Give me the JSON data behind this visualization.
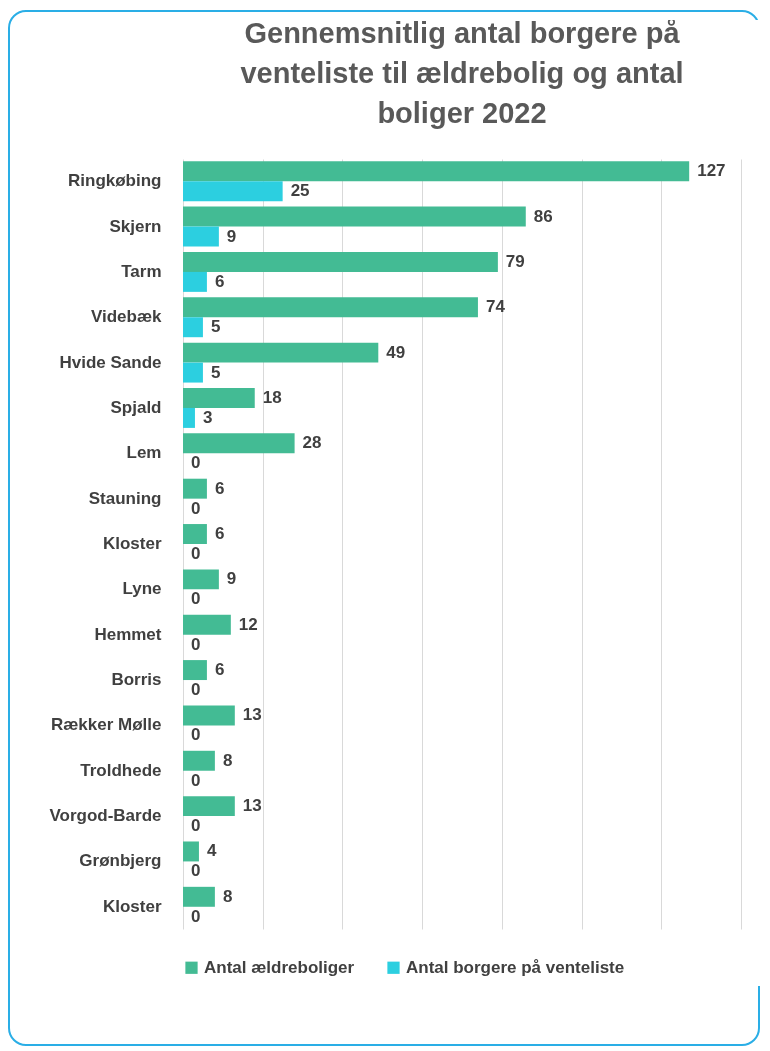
{
  "chart_data": {
    "type": "bar",
    "orientation": "horizontal",
    "title": "Gennemsnitlig antal borgere på venteliste til ældrebolig og antal boliger 2022",
    "categories": [
      "Ringkøbing",
      "Skjern",
      "Tarm",
      "Videbæk",
      "Hvide Sande",
      "Spjald",
      "Lem",
      "Stauning",
      "Kloster",
      "Lyne",
      "Hemmet",
      "Borris",
      "Rækker Mølle",
      "Troldhede",
      "Vorgod-Barde",
      "Grønbjerg",
      "Kloster"
    ],
    "series": [
      {
        "name": "Antal ældreboliger",
        "color": "#43bb94",
        "values": [
          127,
          86,
          79,
          74,
          49,
          18,
          28,
          6,
          6,
          9,
          12,
          6,
          13,
          8,
          13,
          4,
          8
        ]
      },
      {
        "name": "Antal borgere på venteliste",
        "color": "#2ccfe0",
        "values": [
          25,
          9,
          6,
          5,
          5,
          3,
          0,
          0,
          0,
          0,
          0,
          0,
          0,
          0,
          0,
          0,
          0
        ]
      }
    ],
    "xlim": [
      0,
      140
    ],
    "xticks": [
      {
        "value": 0,
        "label": null
      },
      {
        "value": 20,
        "label": null
      },
      {
        "value": 40,
        "label": null
      },
      {
        "value": 60,
        "label": null
      },
      {
        "value": 80,
        "label": null
      },
      {
        "value": 100,
        "label": null
      },
      {
        "value": 120,
        "label": null
      },
      {
        "value": 140,
        "label": null
      }
    ],
    "tick_labels": "y",
    "grid": "x",
    "data_labels": true,
    "legend": "bottom"
  }
}
